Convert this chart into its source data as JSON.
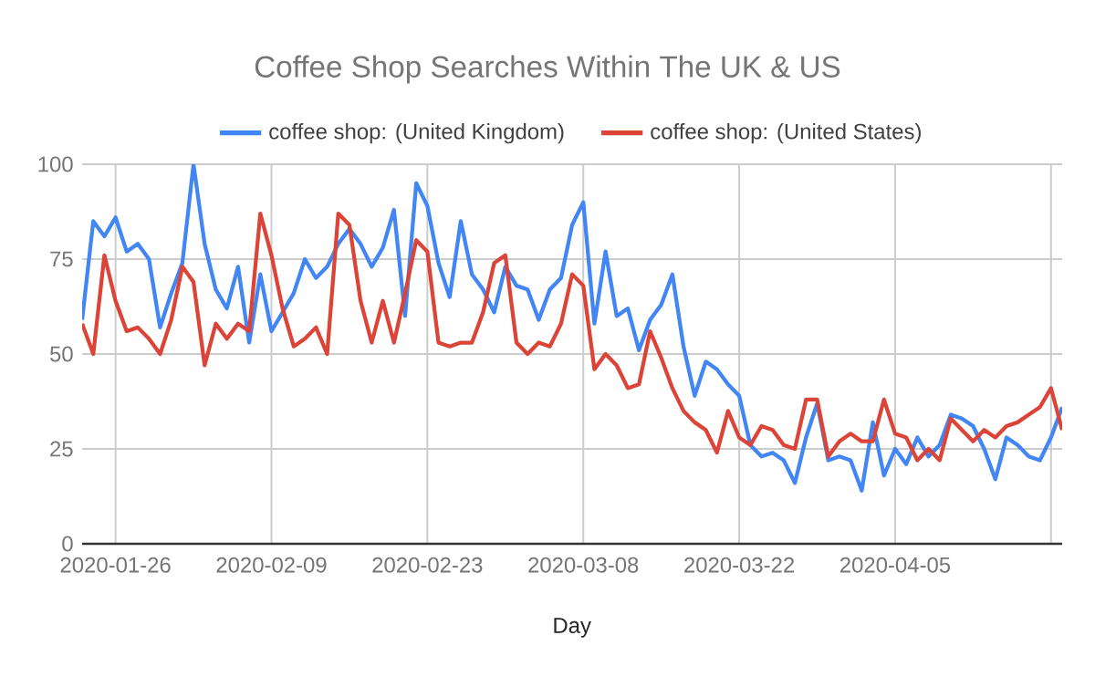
{
  "chart_data": {
    "type": "line",
    "title": "Coffee Shop Searches Within The UK & US",
    "xlabel": "Day",
    "x": [
      "2020-01-23",
      "2020-01-24",
      "2020-01-25",
      "2020-01-26",
      "2020-01-27",
      "2020-01-28",
      "2020-01-29",
      "2020-01-30",
      "2020-01-31",
      "2020-02-01",
      "2020-02-02",
      "2020-02-03",
      "2020-02-04",
      "2020-02-05",
      "2020-02-06",
      "2020-02-07",
      "2020-02-08",
      "2020-02-09",
      "2020-02-10",
      "2020-02-11",
      "2020-02-12",
      "2020-02-13",
      "2020-02-14",
      "2020-02-15",
      "2020-02-16",
      "2020-02-17",
      "2020-02-18",
      "2020-02-19",
      "2020-02-20",
      "2020-02-21",
      "2020-02-22",
      "2020-02-23",
      "2020-02-24",
      "2020-02-25",
      "2020-02-26",
      "2020-02-27",
      "2020-02-28",
      "2020-02-29",
      "2020-03-01",
      "2020-03-02",
      "2020-03-03",
      "2020-03-04",
      "2020-03-05",
      "2020-03-06",
      "2020-03-07",
      "2020-03-08",
      "2020-03-09",
      "2020-03-10",
      "2020-03-11",
      "2020-03-12",
      "2020-03-13",
      "2020-03-14",
      "2020-03-15",
      "2020-03-16",
      "2020-03-17",
      "2020-03-18",
      "2020-03-19",
      "2020-03-20",
      "2020-03-21",
      "2020-03-22",
      "2020-03-23",
      "2020-03-24",
      "2020-03-25",
      "2020-03-26",
      "2020-03-27",
      "2020-03-28",
      "2020-03-29",
      "2020-03-30",
      "2020-03-31",
      "2020-04-01",
      "2020-04-02",
      "2020-04-03",
      "2020-04-04",
      "2020-04-05",
      "2020-04-06",
      "2020-04-07",
      "2020-04-08",
      "2020-04-09",
      "2020-04-10",
      "2020-04-11",
      "2020-04-12",
      "2020-04-13",
      "2020-04-14",
      "2020-04-15",
      "2020-04-16",
      "2020-04-17",
      "2020-04-18",
      "2020-04-19",
      "2020-04-20"
    ],
    "series": [
      {
        "name": "coffee shop: (United Kingdom)",
        "color": "#4285f4",
        "values": [
          59,
          85,
          81,
          86,
          77,
          79,
          75,
          57,
          66,
          74,
          100,
          79,
          67,
          62,
          73,
          53,
          71,
          56,
          61,
          66,
          75,
          70,
          73,
          79,
          83,
          79,
          73,
          78,
          88,
          60,
          95,
          89,
          74,
          65,
          85,
          71,
          67,
          61,
          73,
          68,
          67,
          59,
          67,
          70,
          84,
          90,
          58,
          77,
          60,
          62,
          51,
          59,
          63,
          71,
          52,
          39,
          48,
          46,
          42,
          39,
          26,
          23,
          24,
          22,
          16,
          28,
          37,
          22,
          23,
          22,
          14,
          32,
          18,
          25,
          21,
          28,
          23,
          26,
          34,
          33,
          31,
          25,
          17,
          28,
          26,
          23,
          22,
          28,
          36
        ]
      },
      {
        "name": "coffee shop: (United States)",
        "color": "#db4437",
        "values": [
          58,
          50,
          76,
          64,
          56,
          57,
          54,
          50,
          59,
          73,
          69,
          47,
          58,
          54,
          58,
          56,
          87,
          76,
          62,
          52,
          54,
          57,
          50,
          87,
          84,
          64,
          53,
          64,
          53,
          66,
          80,
          77,
          53,
          52,
          53,
          53,
          61,
          74,
          76,
          53,
          50,
          53,
          52,
          58,
          71,
          68,
          46,
          50,
          47,
          41,
          42,
          56,
          49,
          41,
          35,
          32,
          30,
          24,
          35,
          28,
          26,
          31,
          30,
          26,
          25,
          38,
          38,
          23,
          27,
          29,
          27,
          27,
          38,
          29,
          28,
          22,
          25,
          22,
          33,
          30,
          27,
          30,
          28,
          31,
          32,
          34,
          36,
          41,
          30
        ]
      }
    ],
    "xlim": [
      "2020-01-23",
      "2020-04-20"
    ],
    "xticks": [
      "2020-01-26",
      "2020-02-09",
      "2020-02-23",
      "2020-03-08",
      "2020-03-22",
      "2020-04-05",
      {
        "value": "2020-04-19",
        "label": null
      }
    ],
    "ylim": [
      0,
      100
    ],
    "yticks": [
      0,
      25,
      50,
      75,
      100
    ],
    "grid": true,
    "legend": "top",
    "marker": "none",
    "line_style": "solid"
  }
}
